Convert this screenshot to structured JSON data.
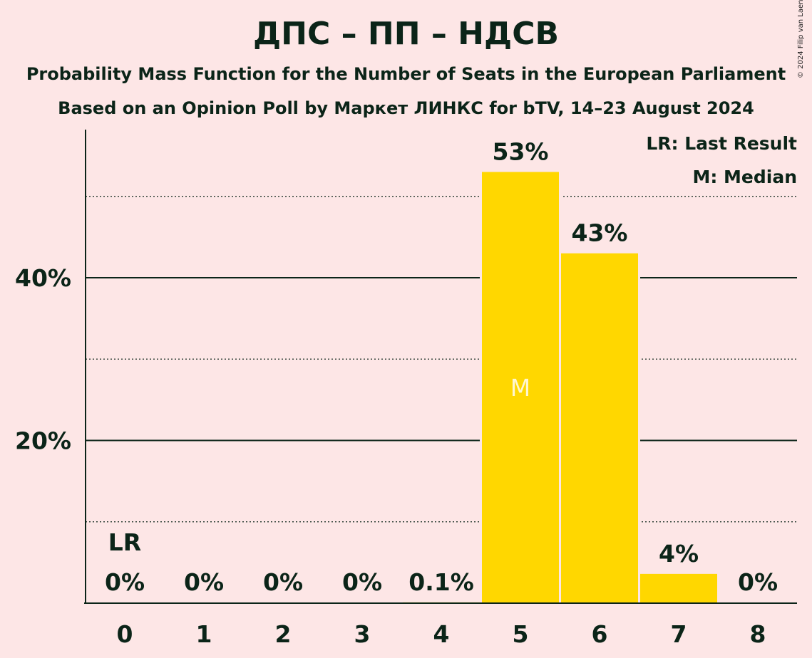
{
  "title": "ДПС – ПП – НДСВ",
  "subtitle": "Probability Mass Function for the Number of Seats in the European Parliament",
  "subtitle2": "Based on an Opinion Poll by Маркет ЛИНКС for bTV, 14–23 August 2024",
  "copyright": "© 2024 Filip van Laenen",
  "legend": {
    "last_result": "LR: Last Result",
    "median": "M: Median"
  },
  "colors": {
    "background": "#FDE6E6",
    "bar": "#FFD700",
    "text": "#0B2418"
  },
  "chart_data": {
    "type": "bar",
    "categories": [
      "0",
      "1",
      "2",
      "3",
      "4",
      "5",
      "6",
      "7",
      "8"
    ],
    "values": [
      0,
      0,
      0,
      0,
      0.1,
      53,
      43,
      3.6,
      0
    ],
    "data_labels": [
      "0%",
      "0%",
      "0%",
      "0%",
      "0.1%",
      "53%",
      "43%",
      "4%",
      "0%"
    ],
    "ylim": [
      0,
      58
    ],
    "yticks": [
      20,
      40
    ],
    "ytick_labels": [
      "20%",
      "40%"
    ],
    "minor_gridlines": [
      10,
      30,
      50
    ],
    "grid": true,
    "legend_position": "top-right",
    "last_result": {
      "category": "0",
      "label": "LR"
    },
    "median": {
      "category": "5",
      "label": "M"
    }
  }
}
